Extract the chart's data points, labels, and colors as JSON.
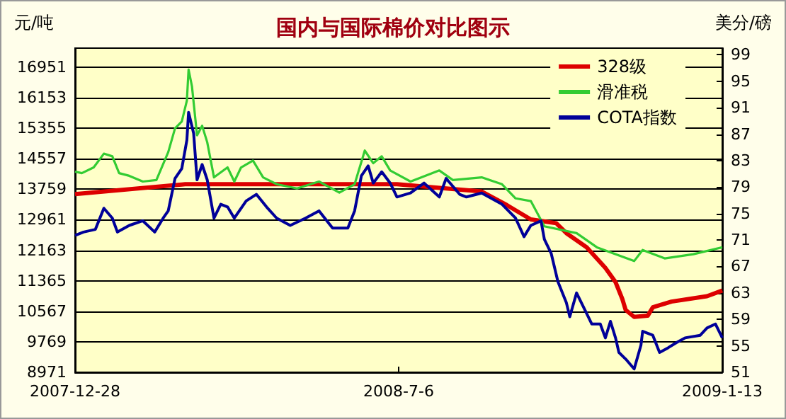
{
  "chart_data": {
    "type": "line",
    "title": "国内与国际棉价对比图示",
    "ylabel": "元/吨",
    "y2label": "美分/磅",
    "xlim": [
      "2007-12-28",
      "2009-01-13"
    ],
    "xticks": [
      {
        "value": "2007-12-28",
        "label": "2007-12-28"
      },
      {
        "value": "2008-07-06",
        "label": "2008-7-6"
      },
      {
        "value": "2009-01-13",
        "label": "2009-1-13"
      }
    ],
    "ylim": [
      8971,
      17450
    ],
    "yticks": [
      8971,
      9769,
      10567,
      11365,
      12163,
      12961,
      13759,
      14557,
      15355,
      16153,
      16951
    ],
    "y2lim": [
      51,
      100
    ],
    "y2ticks": [
      51,
      55,
      59,
      63,
      67,
      71,
      75,
      79,
      83,
      87,
      91,
      95,
      99
    ],
    "grid": "y",
    "legend": "top right",
    "marker": "none",
    "series": [
      {
        "name": "328级",
        "color": "#dd0000",
        "x": [
          "2007-12-28",
          "2008-03-02",
          "2008-04-29",
          "2008-07-05",
          "2008-08-03",
          "2008-08-24",
          "2008-09-08",
          "2008-09-22",
          "2008-10-07",
          "2008-10-13",
          "2008-10-25",
          "2008-11-05",
          "2008-11-11",
          "2008-11-15",
          "2008-11-17",
          "2008-11-22",
          "2008-11-30",
          "2008-12-03",
          "2008-12-14",
          "2009-01-04",
          "2009-01-13"
        ],
        "values": [
          13630,
          13890,
          13890,
          13890,
          13780,
          13700,
          13340,
          12970,
          12870,
          12610,
          12240,
          11700,
          11330,
          10890,
          10600,
          10420,
          10450,
          10670,
          10820,
          10960,
          11110
        ]
      },
      {
        "name": "滑准税",
        "color": "#33cc33",
        "x": [
          "2007-12-28",
          "2008-01-01",
          "2008-01-08",
          "2008-01-14",
          "2008-01-19",
          "2008-01-23",
          "2008-01-29",
          "2008-02-06",
          "2008-02-14",
          "2008-02-21",
          "2008-02-25",
          "2008-02-29",
          "2008-03-03",
          "2008-03-04",
          "2008-03-06",
          "2008-03-09",
          "2008-03-12",
          "2008-03-15",
          "2008-03-19",
          "2008-03-27",
          "2008-03-31",
          "2008-04-04",
          "2008-04-11",
          "2008-04-17",
          "2008-04-25",
          "2008-05-07",
          "2008-05-20",
          "2008-06-01",
          "2008-06-10",
          "2008-06-16",
          "2008-06-21",
          "2008-06-26",
          "2008-07-01",
          "2008-07-13",
          "2008-07-30",
          "2008-08-07",
          "2008-08-24",
          "2008-09-05",
          "2008-09-13",
          "2008-09-22",
          "2008-09-30",
          "2008-10-19",
          "2008-10-31",
          "2008-11-22",
          "2008-11-27",
          "2008-12-10",
          "2008-12-27",
          "2009-01-13"
        ],
        "values": [
          14220,
          14180,
          14330,
          14690,
          14620,
          14180,
          14110,
          13960,
          14000,
          14730,
          15350,
          15530,
          16080,
          16890,
          16450,
          15170,
          15420,
          14990,
          14070,
          14330,
          13960,
          14330,
          14510,
          14070,
          13890,
          13780,
          13960,
          13670,
          13890,
          14770,
          14440,
          14620,
          14250,
          13960,
          14250,
          14000,
          14070,
          13890,
          13520,
          13450,
          12790,
          12610,
          12240,
          11880,
          12170,
          11950,
          12060,
          12240
        ]
      },
      {
        "name": "COTA指数",
        "color": "#000099",
        "axis": "y2",
        "x": [
          "2007-12-28",
          "2008-01-02",
          "2008-01-09",
          "2008-01-14",
          "2008-01-19",
          "2008-01-22",
          "2008-01-29",
          "2008-02-06",
          "2008-02-13",
          "2008-02-18",
          "2008-02-21",
          "2008-02-25",
          "2008-02-29",
          "2008-03-03",
          "2008-03-04",
          "2008-03-07",
          "2008-03-09",
          "2008-03-12",
          "2008-03-15",
          "2008-03-19",
          "2008-03-23",
          "2008-03-27",
          "2008-03-31",
          "2008-04-07",
          "2008-04-13",
          "2008-04-19",
          "2008-04-25",
          "2008-05-03",
          "2008-05-12",
          "2008-05-20",
          "2008-05-28",
          "2008-06-06",
          "2008-06-10",
          "2008-06-14",
          "2008-06-18",
          "2008-06-21",
          "2008-06-26",
          "2008-07-01",
          "2008-07-05",
          "2008-07-13",
          "2008-07-21",
          "2008-07-30",
          "2008-08-03",
          "2008-08-11",
          "2008-08-15",
          "2008-08-24",
          "2008-09-05",
          "2008-09-13",
          "2008-09-18",
          "2008-09-22",
          "2008-09-28",
          "2008-09-30",
          "2008-10-04",
          "2008-10-08",
          "2008-10-13",
          "2008-10-15",
          "2008-10-19",
          "2008-10-23",
          "2008-10-28",
          "2008-11-02",
          "2008-11-05",
          "2008-11-08",
          "2008-11-11",
          "2008-11-13",
          "2008-11-17",
          "2008-11-22",
          "2008-11-26",
          "2008-11-27",
          "2008-12-03",
          "2008-12-07",
          "2008-12-12",
          "2008-12-17",
          "2008-12-22",
          "2008-12-31",
          "2009-01-04",
          "2009-01-09",
          "2009-01-13"
        ],
        "values": [
          71.7,
          72.2,
          72.6,
          75.8,
          74.3,
          72.2,
          73.2,
          73.9,
          72.2,
          74.3,
          75.4,
          80.3,
          81.8,
          86.1,
          90.3,
          87.1,
          80.1,
          82.4,
          80.1,
          74.3,
          76.4,
          76.0,
          74.3,
          76.9,
          77.9,
          76.0,
          74.3,
          73.2,
          74.3,
          75.4,
          72.8,
          72.8,
          75.4,
          80.7,
          82.2,
          79.6,
          81.3,
          79.6,
          77.5,
          78.1,
          79.6,
          77.5,
          80.3,
          77.9,
          77.5,
          78.1,
          76.4,
          74.3,
          71.5,
          73.2,
          73.9,
          71.1,
          69.0,
          64.7,
          61.5,
          59.4,
          63.0,
          60.9,
          58.3,
          58.3,
          56.2,
          58.7,
          56.2,
          54.0,
          53.0,
          51.5,
          55.1,
          57.2,
          56.6,
          54.0,
          54.7,
          55.5,
          56.2,
          56.6,
          57.7,
          58.3,
          56.2
        ]
      }
    ]
  }
}
